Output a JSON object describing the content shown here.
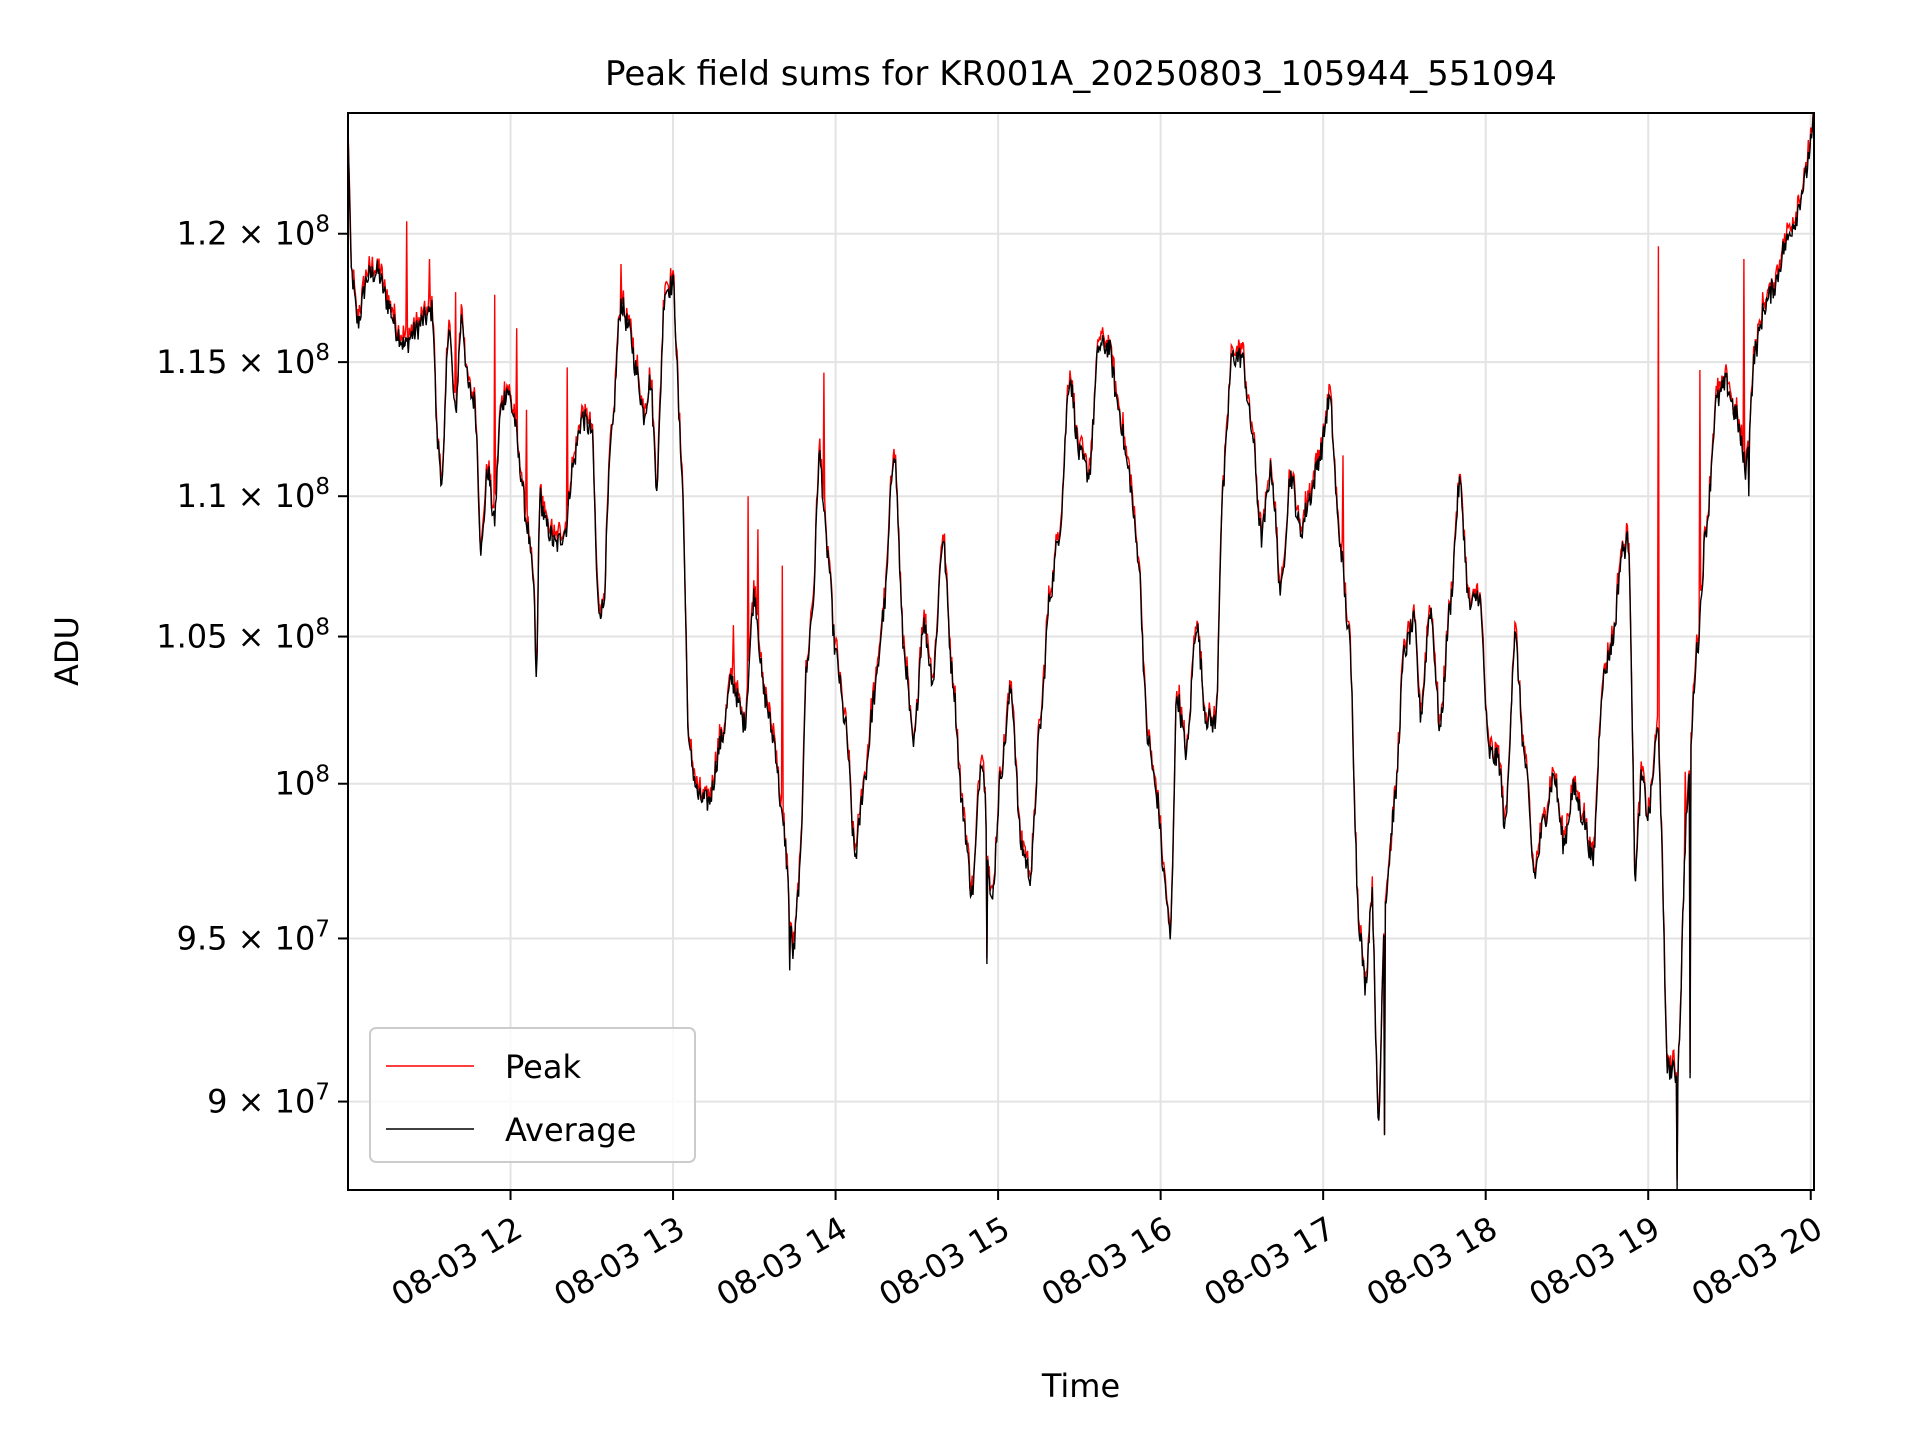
{
  "chart_data": {
    "type": "line",
    "title": "Peak field sums for KR001A_20250803_105944_551094",
    "xlabel": "Time",
    "ylabel": "ADU",
    "x_unit": "hours of day, 2025-08-03",
    "xlim": [
      11.0,
      20.02
    ],
    "ylim": [
      87400000,
      124900000
    ],
    "y_scale": "log",
    "grid": true,
    "legend_position": "lower left",
    "x_ticks": [
      {
        "value": 12,
        "label": "08-03 12"
      },
      {
        "value": 13,
        "label": "08-03 13"
      },
      {
        "value": 14,
        "label": "08-03 14"
      },
      {
        "value": 15,
        "label": "08-03 15"
      },
      {
        "value": 16,
        "label": "08-03 16"
      },
      {
        "value": 17,
        "label": "08-03 17"
      },
      {
        "value": 18,
        "label": "08-03 18"
      },
      {
        "value": 19,
        "label": "08-03 19"
      },
      {
        "value": 20,
        "label": "08-03 20"
      }
    ],
    "y_ticks": [
      {
        "value": 90000000,
        "mantissa": "9",
        "exponent": "7"
      },
      {
        "value": 95000000,
        "mantissa": "9.5",
        "exponent": "7"
      },
      {
        "value": 100000000,
        "mantissa": "",
        "exponent": "8"
      },
      {
        "value": 105000000,
        "mantissa": "1.05",
        "exponent": "8"
      },
      {
        "value": 110000000,
        "mantissa": "1.1",
        "exponent": "8"
      },
      {
        "value": 115000000,
        "mantissa": "1.15",
        "exponent": "8"
      },
      {
        "value": 120000000,
        "mantissa": "1.2",
        "exponent": "8"
      }
    ],
    "series": [
      {
        "name": "Peak",
        "color": "#ff0000"
      },
      {
        "name": "Average",
        "color": "#000000"
      }
    ],
    "average_anchors": [
      [
        11.0,
        124000000
      ],
      [
        11.02,
        118500000
      ],
      [
        11.06,
        116500000
      ],
      [
        11.12,
        118300000
      ],
      [
        11.18,
        118500000
      ],
      [
        11.25,
        117200000
      ],
      [
        11.3,
        116200000
      ],
      [
        11.35,
        115600000
      ],
      [
        11.4,
        116100000
      ],
      [
        11.48,
        116700000
      ],
      [
        11.52,
        117000000
      ],
      [
        11.55,
        112000000
      ],
      [
        11.58,
        110500000
      ],
      [
        11.62,
        116500000
      ],
      [
        11.66,
        113000000
      ],
      [
        11.7,
        116800000
      ],
      [
        11.74,
        114000000
      ],
      [
        11.78,
        113500000
      ],
      [
        11.82,
        108000000
      ],
      [
        11.86,
        111000000
      ],
      [
        11.9,
        109000000
      ],
      [
        11.94,
        113200000
      ],
      [
        11.98,
        114000000
      ],
      [
        12.02,
        113000000
      ],
      [
        12.06,
        111000000
      ],
      [
        12.1,
        109000000
      ],
      [
        12.14,
        107000000
      ],
      [
        12.16,
        103600000
      ],
      [
        12.18,
        110000000
      ],
      [
        12.22,
        108900000
      ],
      [
        12.28,
        108200000
      ],
      [
        12.34,
        108800000
      ],
      [
        12.38,
        111000000
      ],
      [
        12.44,
        112900000
      ],
      [
        12.5,
        112400000
      ],
      [
        12.54,
        106000000
      ],
      [
        12.57,
        106000000
      ],
      [
        12.62,
        112000000
      ],
      [
        12.68,
        117300000
      ],
      [
        12.73,
        116200000
      ],
      [
        12.78,
        114500000
      ],
      [
        12.82,
        113000000
      ],
      [
        12.86,
        114300000
      ],
      [
        12.9,
        110500000
      ],
      [
        12.95,
        117800000
      ],
      [
        13.0,
        118000000
      ],
      [
        13.05,
        111500000
      ],
      [
        13.1,
        101000000
      ],
      [
        13.16,
        99500000
      ],
      [
        13.22,
        99400000
      ],
      [
        13.3,
        101500000
      ],
      [
        13.36,
        103500000
      ],
      [
        13.44,
        102000000
      ],
      [
        13.5,
        106500000
      ],
      [
        13.56,
        103000000
      ],
      [
        13.62,
        101500000
      ],
      [
        13.68,
        98500000
      ],
      [
        13.74,
        94500000
      ],
      [
        13.78,
        97000000
      ],
      [
        13.82,
        103800000
      ],
      [
        13.86,
        106000000
      ],
      [
        13.9,
        111500000
      ],
      [
        13.95,
        108000000
      ],
      [
        14.0,
        104400000
      ],
      [
        14.06,
        102000000
      ],
      [
        14.12,
        97600000
      ],
      [
        14.18,
        100200000
      ],
      [
        14.24,
        103000000
      ],
      [
        14.3,
        106000000
      ],
      [
        14.36,
        111800000
      ],
      [
        14.42,
        104500000
      ],
      [
        14.48,
        101200000
      ],
      [
        14.54,
        105500000
      ],
      [
        14.6,
        103500000
      ],
      [
        14.66,
        108500000
      ],
      [
        14.72,
        103600000
      ],
      [
        14.78,
        99200000
      ],
      [
        14.84,
        96400000
      ],
      [
        14.9,
        101000000
      ],
      [
        14.96,
        96000000
      ],
      [
        15.02,
        100500000
      ],
      [
        15.08,
        103200000
      ],
      [
        15.14,
        98000000
      ],
      [
        15.2,
        97000000
      ],
      [
        15.26,
        102000000
      ],
      [
        15.32,
        106500000
      ],
      [
        15.38,
        108800000
      ],
      [
        15.44,
        114500000
      ],
      [
        15.5,
        111500000
      ],
      [
        15.56,
        110800000
      ],
      [
        15.62,
        115600000
      ],
      [
        15.68,
        115600000
      ],
      [
        15.74,
        113300000
      ],
      [
        15.8,
        111000000
      ],
      [
        15.86,
        108000000
      ],
      [
        15.92,
        101500000
      ],
      [
        15.98,
        99500000
      ],
      [
        16.02,
        97000000
      ],
      [
        16.06,
        95000000
      ],
      [
        16.1,
        103000000
      ],
      [
        16.16,
        101000000
      ],
      [
        16.22,
        105500000
      ],
      [
        16.28,
        102200000
      ],
      [
        16.34,
        102000000
      ],
      [
        16.38,
        110000000
      ],
      [
        16.44,
        115200000
      ],
      [
        16.5,
        115200000
      ],
      [
        16.56,
        112500000
      ],
      [
        16.62,
        108500000
      ],
      [
        16.68,
        111000000
      ],
      [
        16.74,
        106500000
      ],
      [
        16.8,
        110800000
      ],
      [
        16.86,
        108700000
      ],
      [
        16.92,
        110000000
      ],
      [
        16.98,
        111500000
      ],
      [
        17.04,
        113600000
      ],
      [
        17.1,
        108500000
      ],
      [
        17.16,
        105000000
      ],
      [
        17.22,
        95500000
      ],
      [
        17.26,
        93500000
      ],
      [
        17.3,
        96500000
      ],
      [
        17.34,
        89200000
      ],
      [
        17.38,
        96200000
      ],
      [
        17.44,
        99300000
      ],
      [
        17.5,
        104500000
      ],
      [
        17.56,
        105500000
      ],
      [
        17.6,
        102300000
      ],
      [
        17.66,
        106000000
      ],
      [
        17.72,
        101800000
      ],
      [
        17.78,
        106000000
      ],
      [
        17.84,
        110500000
      ],
      [
        17.9,
        106000000
      ],
      [
        17.96,
        106500000
      ],
      [
        18.02,
        101000000
      ],
      [
        18.08,
        100800000
      ],
      [
        18.12,
        98500000
      ],
      [
        18.18,
        105000000
      ],
      [
        18.24,
        100800000
      ],
      [
        18.3,
        97000000
      ],
      [
        18.36,
        98800000
      ],
      [
        18.42,
        100300000
      ],
      [
        18.48,
        98000000
      ],
      [
        18.54,
        99800000
      ],
      [
        18.6,
        98900000
      ],
      [
        18.66,
        97400000
      ],
      [
        18.72,
        103500000
      ],
      [
        18.78,
        104800000
      ],
      [
        18.84,
        108000000
      ],
      [
        18.88,
        108400000
      ],
      [
        18.92,
        97000000
      ],
      [
        18.96,
        100200000
      ],
      [
        19.0,
        98900000
      ],
      [
        19.06,
        101800000
      ],
      [
        19.12,
        91000000
      ],
      [
        19.18,
        90800000
      ],
      [
        19.24,
        99300000
      ],
      [
        19.3,
        104500000
      ],
      [
        19.36,
        109000000
      ],
      [
        19.42,
        113500000
      ],
      [
        19.48,
        114200000
      ],
      [
        19.54,
        113000000
      ],
      [
        19.6,
        111000000
      ],
      [
        19.66,
        115500000
      ],
      [
        19.72,
        117200000
      ],
      [
        19.78,
        118000000
      ],
      [
        19.84,
        119500000
      ],
      [
        19.9,
        120500000
      ],
      [
        19.96,
        122000000
      ],
      [
        20.0,
        123600000
      ],
      [
        20.02,
        124500000
      ]
    ],
    "peak_spikes": [
      [
        11.36,
        120500000
      ],
      [
        11.5,
        119000000
      ],
      [
        11.66,
        117700000
      ],
      [
        11.9,
        117600000
      ],
      [
        12.04,
        116300000
      ],
      [
        12.1,
        113200000
      ],
      [
        12.35,
        114800000
      ],
      [
        12.68,
        118800000
      ],
      [
        13.37,
        105400000
      ],
      [
        13.46,
        110000000
      ],
      [
        13.52,
        108800000
      ],
      [
        13.67,
        107500000
      ],
      [
        13.93,
        114600000
      ],
      [
        17.12,
        111500000
      ],
      [
        17.42,
        97800000
      ],
      [
        19.06,
        119500000
      ],
      [
        19.23,
        100400000
      ],
      [
        19.32,
        114700000
      ],
      [
        19.59,
        119000000
      ]
    ],
    "average_dips": [
      [
        12.16,
        103600000
      ],
      [
        13.72,
        94000000
      ],
      [
        14.93,
        94200000
      ],
      [
        17.38,
        89000000
      ],
      [
        19.18,
        87400000
      ],
      [
        19.26,
        90700000
      ],
      [
        19.62,
        110000000
      ]
    ]
  }
}
